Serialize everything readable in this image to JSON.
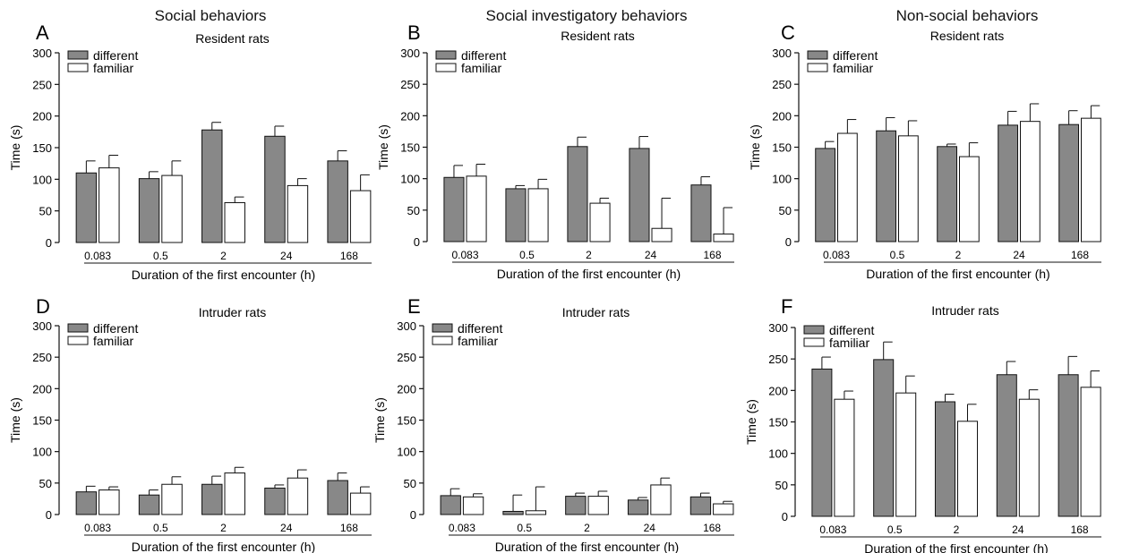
{
  "column_titles": [
    "Social behaviors",
    "Social investigatory behaviors",
    "Non-social behaviors"
  ],
  "chart_data": [
    {
      "type": "bar",
      "panel": "A",
      "subtitle": "Resident rats",
      "categories": [
        "0.083",
        "0.5",
        "2",
        "24",
        "168"
      ],
      "series": [
        {
          "name": "different",
          "values": [
            110,
            101,
            178,
            168,
            129
          ],
          "errors": [
            19,
            11,
            12,
            16,
            16
          ]
        },
        {
          "name": "familiar",
          "values": [
            118,
            106,
            63,
            90,
            82
          ],
          "errors": [
            20,
            23,
            9,
            11,
            25
          ]
        }
      ],
      "xlabel": "Duration of the first encounter (h)",
      "ylabel": "Time (s)",
      "ylim": [
        0,
        300
      ],
      "yticks": [
        0,
        50,
        100,
        150,
        200,
        250,
        300
      ],
      "colors": {
        "different": "#888888",
        "familiar": "#ffffff"
      },
      "legend": "top-left"
    },
    {
      "type": "bar",
      "panel": "B",
      "subtitle": "Resident rats",
      "categories": [
        "0.083",
        "0.5",
        "2",
        "24",
        "168"
      ],
      "series": [
        {
          "name": "different",
          "values": [
            102,
            84,
            151,
            148,
            90
          ],
          "errors": [
            19,
            5,
            15,
            19,
            13
          ]
        },
        {
          "name": "familiar",
          "values": [
            104,
            84,
            61,
            21,
            12
          ],
          "errors": [
            19,
            15,
            8,
            48,
            42
          ]
        }
      ],
      "xlabel": "Duration of the first encounter (h)",
      "ylabel": "Time (s)",
      "ylim": [
        0,
        300
      ],
      "yticks": [
        0,
        50,
        100,
        150,
        200,
        250,
        300
      ],
      "colors": {
        "different": "#888888",
        "familiar": "#ffffff"
      },
      "legend": "top-left"
    },
    {
      "type": "bar",
      "panel": "C",
      "subtitle": "Resident rats",
      "categories": [
        "0.083",
        "0.5",
        "2",
        "24",
        "168"
      ],
      "series": [
        {
          "name": "different",
          "values": [
            148,
            176,
            151,
            185,
            186
          ],
          "errors": [
            11,
            21,
            4,
            22,
            22
          ]
        },
        {
          "name": "familiar",
          "values": [
            172,
            168,
            135,
            191,
            196
          ],
          "errors": [
            22,
            24,
            22,
            28,
            20
          ]
        }
      ],
      "xlabel": "Duration of the first encounter (h)",
      "ylabel": "Time (s)",
      "ylim": [
        0,
        300
      ],
      "yticks": [
        0,
        50,
        100,
        150,
        200,
        250,
        300
      ],
      "colors": {
        "different": "#888888",
        "familiar": "#ffffff"
      },
      "legend": "top-left"
    },
    {
      "type": "bar",
      "panel": "D",
      "subtitle": "Intruder rats",
      "categories": [
        "0.083",
        "0.5",
        "2",
        "24",
        "168"
      ],
      "series": [
        {
          "name": "different",
          "values": [
            36,
            31,
            48,
            42,
            54
          ],
          "errors": [
            9,
            8,
            13,
            5,
            12
          ]
        },
        {
          "name": "familiar",
          "values": [
            39,
            48,
            66,
            58,
            34
          ],
          "errors": [
            5,
            12,
            9,
            13,
            10
          ]
        }
      ],
      "xlabel": "Duration of the first encounter (h)",
      "ylabel": "Time (s)",
      "ylim": [
        0,
        300
      ],
      "yticks": [
        0,
        50,
        100,
        150,
        200,
        250,
        300
      ],
      "colors": {
        "different": "#888888",
        "familiar": "#ffffff"
      },
      "legend": "top-left"
    },
    {
      "type": "bar",
      "panel": "E",
      "subtitle": "Intruder rats",
      "categories": [
        "0.083",
        "0.5",
        "2",
        "24",
        "168"
      ],
      "series": [
        {
          "name": "different",
          "values": [
            30,
            5,
            29,
            23,
            28
          ],
          "errors": [
            11,
            26,
            5,
            4,
            6
          ]
        },
        {
          "name": "familiar",
          "values": [
            28,
            6,
            29,
            47,
            17
          ],
          "errors": [
            5,
            38,
            8,
            11,
            4
          ]
        }
      ],
      "xlabel": "Duration of the first encounter (h)",
      "ylabel": "Time (s)",
      "ylim": [
        0,
        300
      ],
      "yticks": [
        0,
        50,
        100,
        150,
        200,
        250,
        300
      ],
      "colors": {
        "different": "#888888",
        "familiar": "#ffffff"
      },
      "legend": "top-left"
    },
    {
      "type": "bar",
      "panel": "F",
      "subtitle": "Intruder rats",
      "categories": [
        "0.083",
        "0.5",
        "2",
        "24",
        "168"
      ],
      "series": [
        {
          "name": "different",
          "values": [
            234,
            249,
            182,
            225,
            225
          ],
          "errors": [
            19,
            28,
            12,
            21,
            29
          ]
        },
        {
          "name": "familiar",
          "values": [
            186,
            196,
            151,
            186,
            205
          ],
          "errors": [
            13,
            27,
            27,
            15,
            26
          ]
        }
      ],
      "xlabel": "Duration of the first encounter (h)",
      "ylabel": "Time (s)",
      "ylim": [
        0,
        300
      ],
      "yticks": [
        0,
        50,
        100,
        150,
        200,
        250,
        300
      ],
      "colors": {
        "different": "#888888",
        "familiar": "#ffffff"
      },
      "legend": "top-left"
    }
  ]
}
